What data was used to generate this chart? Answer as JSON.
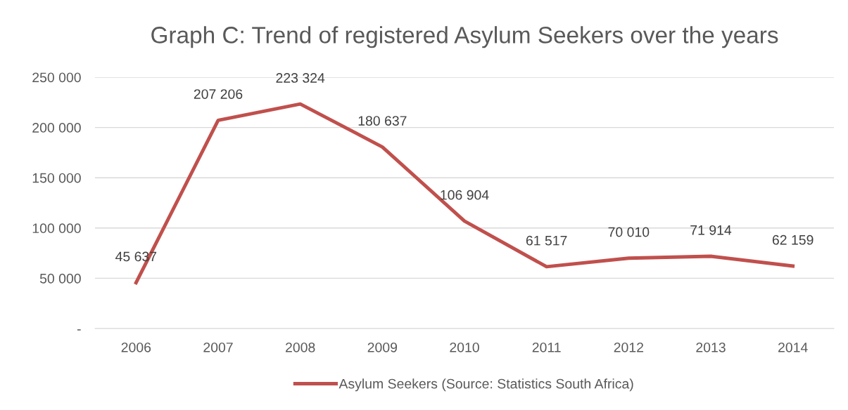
{
  "chart_data": {
    "type": "line",
    "title": "Graph C: Trend of registered Asylum Seekers over the years",
    "categories": [
      "2006",
      "2007",
      "2008",
      "2009",
      "2010",
      "2011",
      "2012",
      "2013",
      "2014"
    ],
    "series": [
      {
        "name": "Asylum Seekers (Source: Statistics South Africa)",
        "color": "#c0504d",
        "values": [
          45637,
          207206,
          223324,
          180637,
          106904,
          61517,
          70010,
          71914,
          62159
        ],
        "value_labels": [
          "45 637",
          "207 206",
          "223 324",
          "180 637",
          "106 904",
          "61 517",
          "70 010",
          "71 914",
          "62 159"
        ]
      }
    ],
    "ylim": [
      0,
      250000
    ],
    "yticks": [
      {
        "value": 0,
        "label": "-"
      },
      {
        "value": 50000,
        "label": "50 000"
      },
      {
        "value": 100000,
        "label": "100 000"
      },
      {
        "value": 150000,
        "label": "150 000"
      },
      {
        "value": 200000,
        "label": "200 000"
      },
      {
        "value": 250000,
        "label": "250 000"
      }
    ],
    "grid": "y",
    "legend": "bottom",
    "marker": "none",
    "line_style": "solid"
  }
}
